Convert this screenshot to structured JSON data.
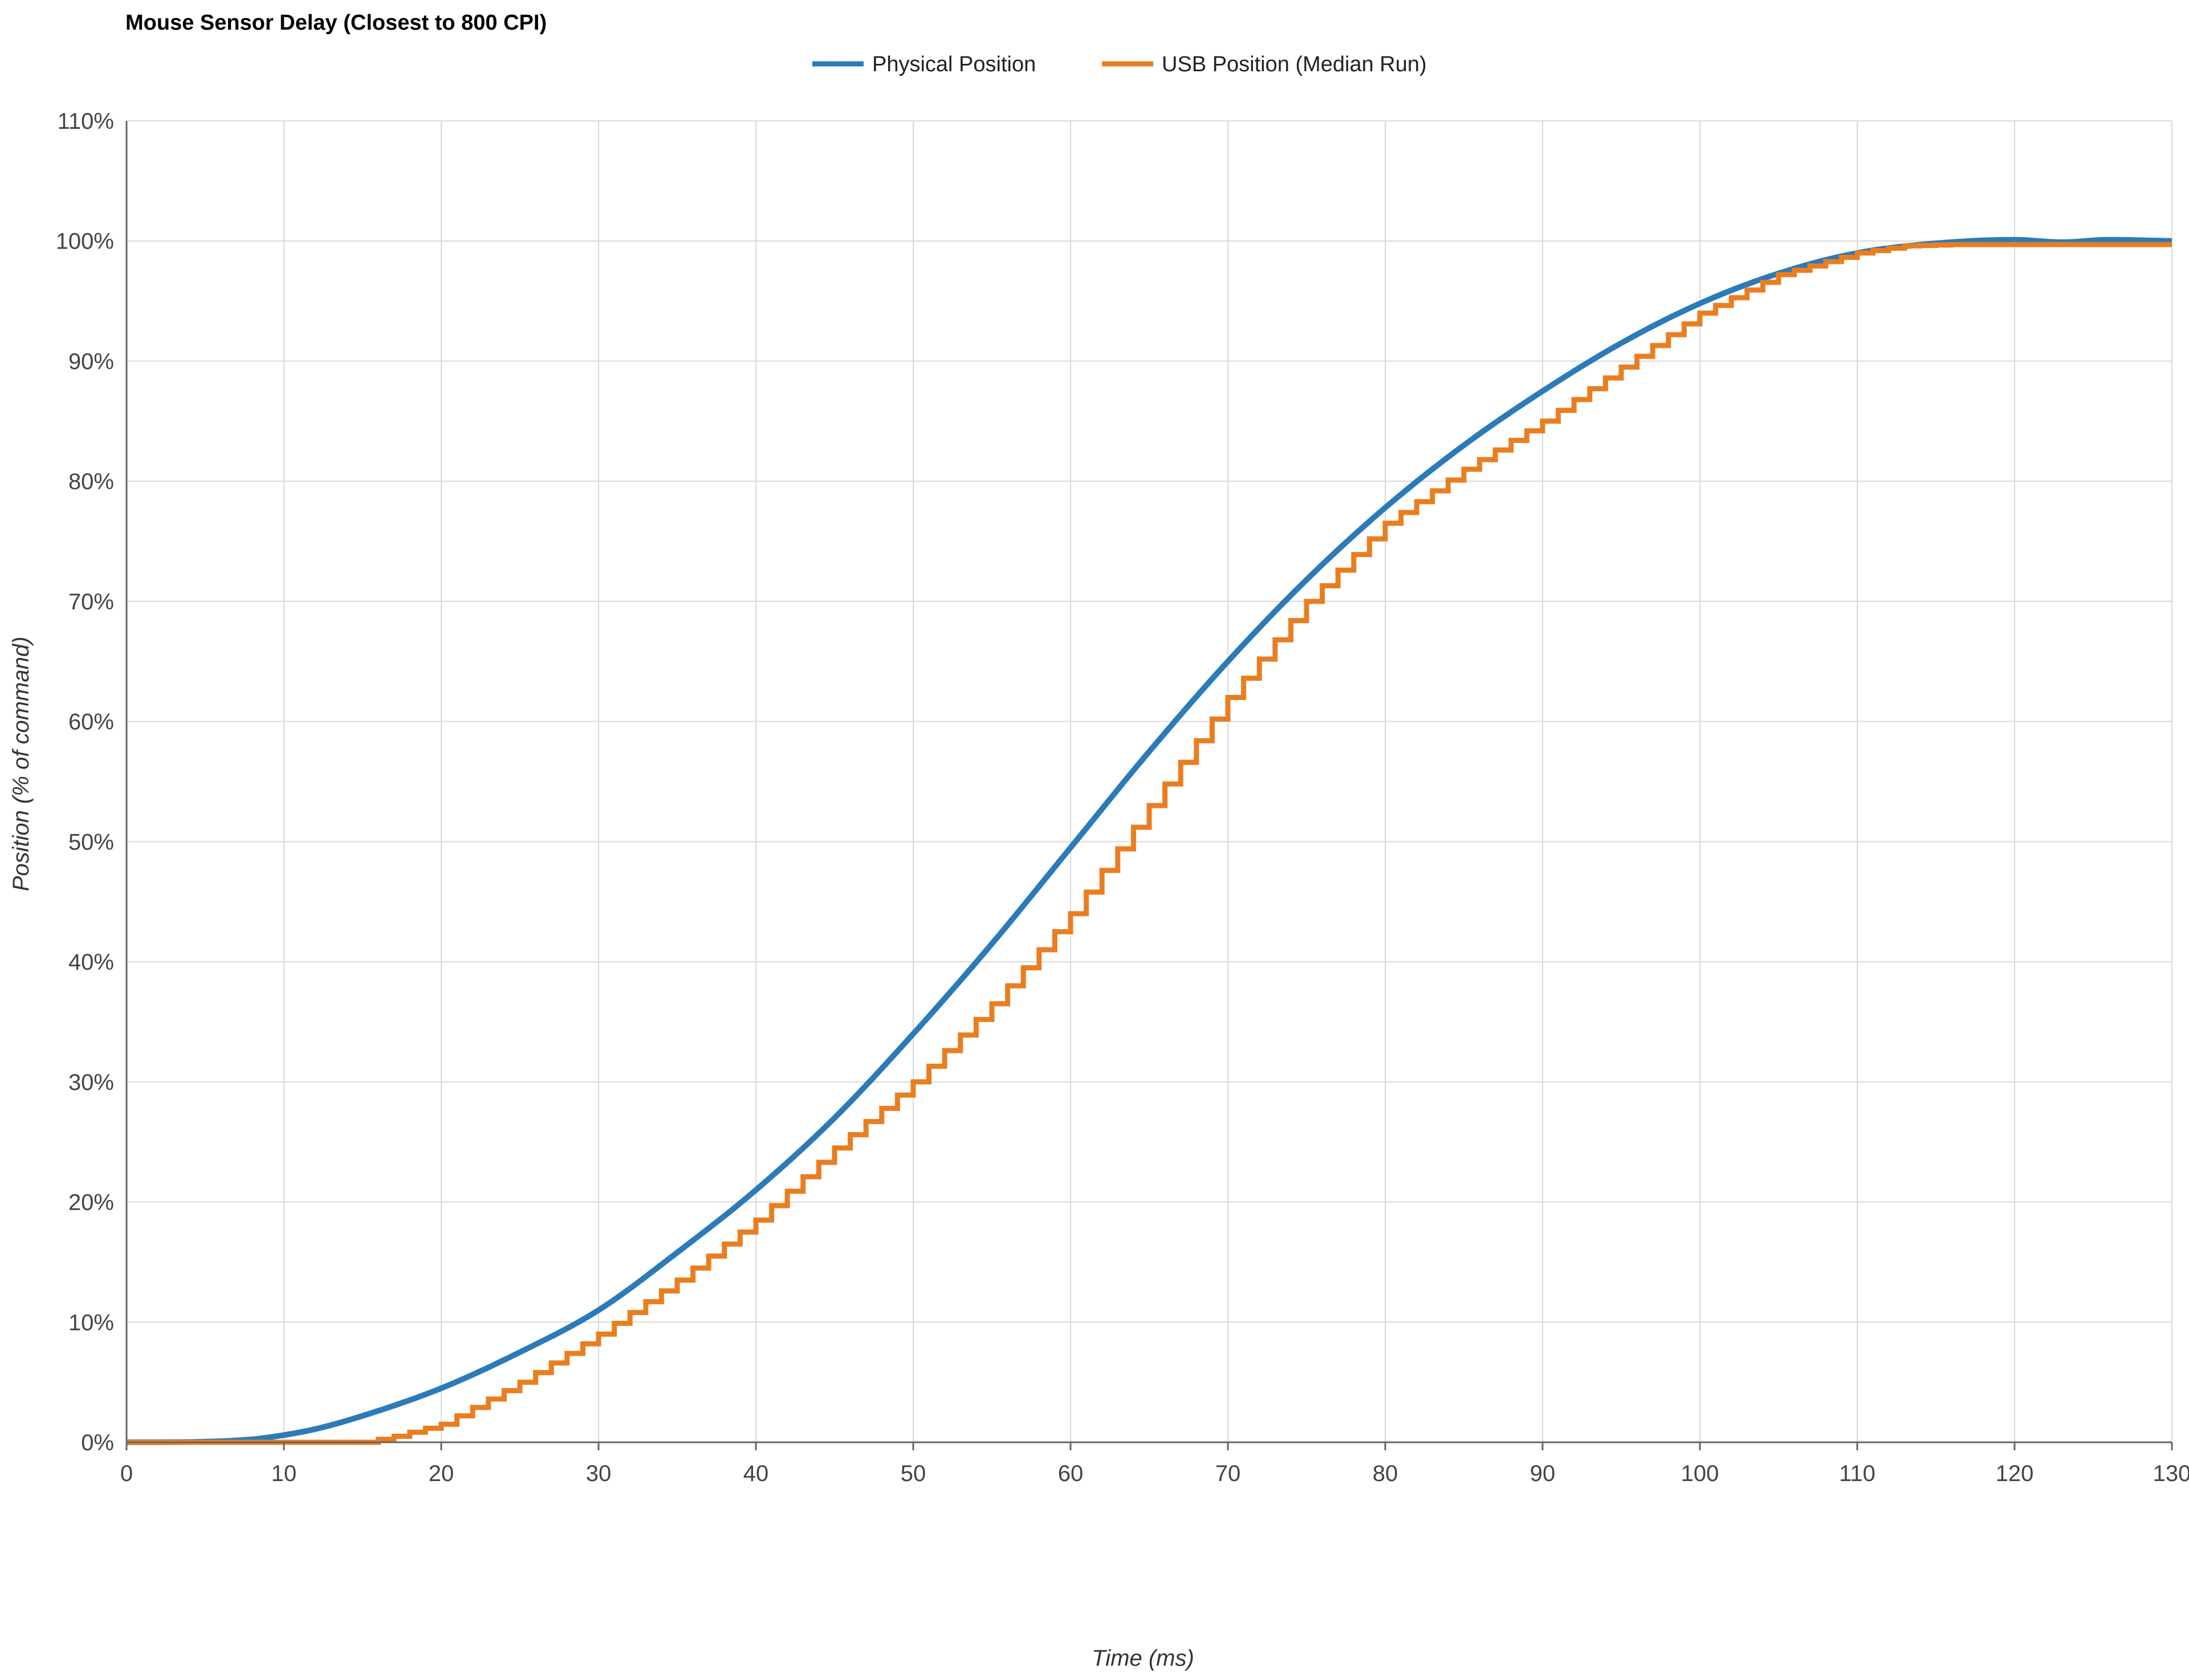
{
  "chart_data": {
    "type": "line",
    "title": "Mouse Sensor Delay (Closest to 800 CPI)",
    "xlabel": "Time (ms)",
    "ylabel": "Position (% of command)",
    "xlim": [
      0,
      130
    ],
    "ylim": [
      0,
      110
    ],
    "x_ticks": [
      "0",
      "10",
      "20",
      "30",
      "40",
      "50",
      "60",
      "70",
      "80",
      "90",
      "100",
      "110",
      "120",
      "130"
    ],
    "y_ticks": [
      "0%",
      "10%",
      "20%",
      "30%",
      "40%",
      "50%",
      "60%",
      "70%",
      "80%",
      "90%",
      "100%",
      "110%"
    ],
    "grid": true,
    "legend_position": "top-center",
    "series": [
      {
        "name": "Physical Position",
        "color": "#2b7bb9",
        "step": false,
        "x": [
          0,
          5,
          8,
          10,
          12,
          15,
          20,
          25,
          30,
          35,
          40,
          45,
          50,
          55,
          60,
          65,
          70,
          75,
          80,
          85,
          90,
          95,
          100,
          105,
          110,
          115,
          120,
          123,
          126,
          130
        ],
        "y": [
          0,
          0.05,
          0.25,
          0.6,
          1.1,
          2.2,
          4.5,
          7.5,
          11,
          15.8,
          21,
          27,
          34,
          41.5,
          49.5,
          57.5,
          65,
          71.8,
          77.8,
          83,
          87.5,
          91.5,
          94.8,
          97.3,
          99,
          99.8,
          100.1,
          99.9,
          100.1,
          100
        ]
      },
      {
        "name": "USB Position (Median Run)",
        "color": "#e97e21",
        "step": true,
        "x": [
          0,
          15,
          17,
          20,
          25,
          30,
          35,
          40,
          45,
          50,
          55,
          60,
          65,
          70,
          75,
          80,
          85,
          90,
          95,
          100,
          105,
          110,
          113,
          116,
          120,
          130
        ],
        "y": [
          0,
          0,
          0.5,
          1.5,
          5,
          9,
          13.5,
          18.5,
          24.5,
          30,
          36.5,
          44,
          53,
          62,
          70,
          76.5,
          81,
          85,
          89.5,
          94,
          97.2,
          99,
          99.6,
          99.7,
          99.7,
          99.7
        ]
      }
    ]
  }
}
